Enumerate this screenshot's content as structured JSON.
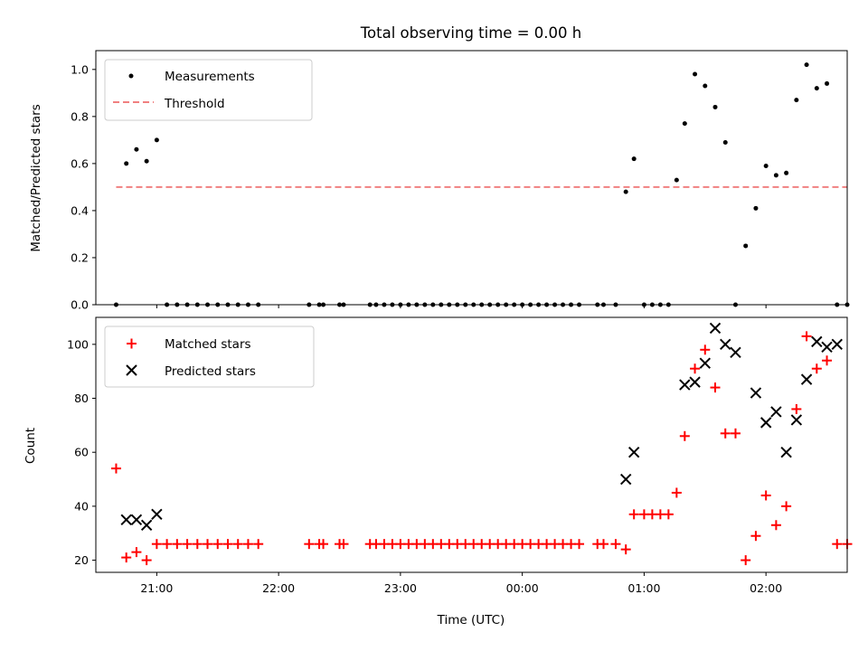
{
  "chart_data": [
    {
      "type": "scatter",
      "title": "Total observing time = 0.00 h",
      "xlabel": "",
      "ylabel": "Matched/Predicted stars",
      "ylim": [
        0,
        1.08
      ],
      "yticks": [
        "0.0",
        "0.2",
        "0.4",
        "0.6",
        "0.8",
        "1.0"
      ],
      "ytick_values": [
        0,
        0.2,
        0.4,
        0.6,
        0.8,
        1.0
      ],
      "xticks_shown_labels": false,
      "legend_position": "upper-left",
      "series": [
        {
          "name": "Measurements",
          "kind": "points",
          "color": "#000000",
          "x": [
            "20:40",
            "20:45",
            "20:50",
            "20:55",
            "21:00",
            "21:05",
            "21:10",
            "21:15",
            "21:20",
            "21:25",
            "21:30",
            "21:35",
            "21:40",
            "21:45",
            "21:50",
            "22:15",
            "22:20",
            "22:22",
            "22:30",
            "22:32",
            "22:45",
            "22:48",
            "22:52",
            "22:56",
            "23:00",
            "23:04",
            "23:08",
            "23:12",
            "23:16",
            "23:20",
            "23:24",
            "23:28",
            "23:32",
            "23:36",
            "23:40",
            "23:44",
            "23:48",
            "23:52",
            "23:56",
            "00:00",
            "00:04",
            "00:08",
            "00:12",
            "00:16",
            "00:20",
            "00:24",
            "00:28",
            "00:37",
            "00:40",
            "00:46",
            "00:51",
            "00:55",
            "01:00",
            "01:04",
            "01:08",
            "01:12",
            "01:16",
            "01:20",
            "01:25",
            "01:30",
            "01:35",
            "01:40",
            "01:45",
            "01:50",
            "01:55",
            "02:00",
            "02:05",
            "02:10",
            "02:15",
            "02:20",
            "02:25",
            "02:30",
            "02:35",
            "02:40"
          ],
          "y": [
            0.0,
            0.6,
            0.66,
            0.61,
            0.7,
            0.0,
            0.0,
            0.0,
            0.0,
            0.0,
            0.0,
            0.0,
            0.0,
            0.0,
            0.0,
            0.0,
            0.0,
            0.0,
            0.0,
            0.0,
            0.0,
            0.0,
            0.0,
            0.0,
            0.0,
            0.0,
            0.0,
            0.0,
            0.0,
            0.0,
            0.0,
            0.0,
            0.0,
            0.0,
            0.0,
            0.0,
            0.0,
            0.0,
            0.0,
            0.0,
            0.0,
            0.0,
            0.0,
            0.0,
            0.0,
            0.0,
            0.0,
            0.0,
            0.0,
            0.0,
            0.48,
            0.62,
            0.0,
            0.0,
            0.0,
            0.0,
            0.53,
            0.77,
            0.98,
            0.93,
            0.84,
            0.69,
            0.0,
            0.25,
            0.41,
            0.59,
            0.55,
            0.56,
            0.87,
            1.02,
            0.92,
            0.94,
            0.0,
            0.0
          ]
        },
        {
          "name": "Threshold",
          "kind": "dashed-line",
          "color": "#f08080",
          "x": [
            "20:40",
            "02:40"
          ],
          "y": [
            0.5,
            0.5
          ]
        }
      ]
    },
    {
      "type": "scatter",
      "title": "",
      "xlabel": "Time (UTC)",
      "ylabel": "Count",
      "ylim": [
        15.5,
        110
      ],
      "yticks": [
        "20",
        "40",
        "60",
        "80",
        "100"
      ],
      "ytick_values": [
        20,
        40,
        60,
        80,
        100
      ],
      "xticks": [
        "21:00",
        "22:00",
        "23:00",
        "00:00",
        "01:00",
        "02:00"
      ],
      "legend_position": "upper-left",
      "series": [
        {
          "name": "Matched stars",
          "kind": "plus",
          "color": "#ff0000",
          "x": [
            "20:40",
            "20:45",
            "20:50",
            "20:55",
            "21:00",
            "21:05",
            "21:10",
            "21:15",
            "21:20",
            "21:25",
            "21:30",
            "21:35",
            "21:40",
            "21:45",
            "21:50",
            "22:15",
            "22:20",
            "22:22",
            "22:30",
            "22:32",
            "22:45",
            "22:48",
            "22:52",
            "22:56",
            "23:00",
            "23:04",
            "23:08",
            "23:12",
            "23:16",
            "23:20",
            "23:24",
            "23:28",
            "23:32",
            "23:36",
            "23:40",
            "23:44",
            "23:48",
            "23:52",
            "23:56",
            "00:00",
            "00:04",
            "00:08",
            "00:12",
            "00:16",
            "00:20",
            "00:24",
            "00:28",
            "00:37",
            "00:40",
            "00:46",
            "00:51",
            "00:55",
            "01:00",
            "01:04",
            "01:08",
            "01:12",
            "01:16",
            "01:20",
            "01:25",
            "01:30",
            "01:35",
            "01:40",
            "01:45",
            "01:50",
            "01:55",
            "02:00",
            "02:05",
            "02:10",
            "02:15",
            "02:20",
            "02:25",
            "02:30",
            "02:35",
            "02:40"
          ],
          "y": [
            54,
            21,
            23,
            20,
            26,
            26,
            26,
            26,
            26,
            26,
            26,
            26,
            26,
            26,
            26,
            26,
            26,
            26,
            26,
            26,
            26,
            26,
            26,
            26,
            26,
            26,
            26,
            26,
            26,
            26,
            26,
            26,
            26,
            26,
            26,
            26,
            26,
            26,
            26,
            26,
            26,
            26,
            26,
            26,
            26,
            26,
            26,
            26,
            26,
            26,
            24,
            37,
            37,
            37,
            37,
            37,
            45,
            66,
            91,
            98,
            84,
            67,
            67,
            20,
            29,
            44,
            33,
            40,
            76,
            103,
            91,
            94,
            26,
            26
          ]
        },
        {
          "name": "Predicted stars",
          "kind": "cross",
          "color": "#000000",
          "x": [
            "20:45",
            "20:50",
            "20:55",
            "21:00",
            "00:51",
            "00:55",
            "01:20",
            "01:25",
            "01:30",
            "01:35",
            "01:40",
            "01:45",
            "01:55",
            "02:00",
            "02:05",
            "02:10",
            "02:15",
            "02:20",
            "02:25",
            "02:30",
            "02:35"
          ],
          "y": [
            35,
            35,
            33,
            37,
            50,
            60,
            85,
            86,
            93,
            106,
            100,
            97,
            82,
            71,
            75,
            60,
            72,
            87,
            101,
            99,
            100
          ]
        }
      ]
    }
  ]
}
